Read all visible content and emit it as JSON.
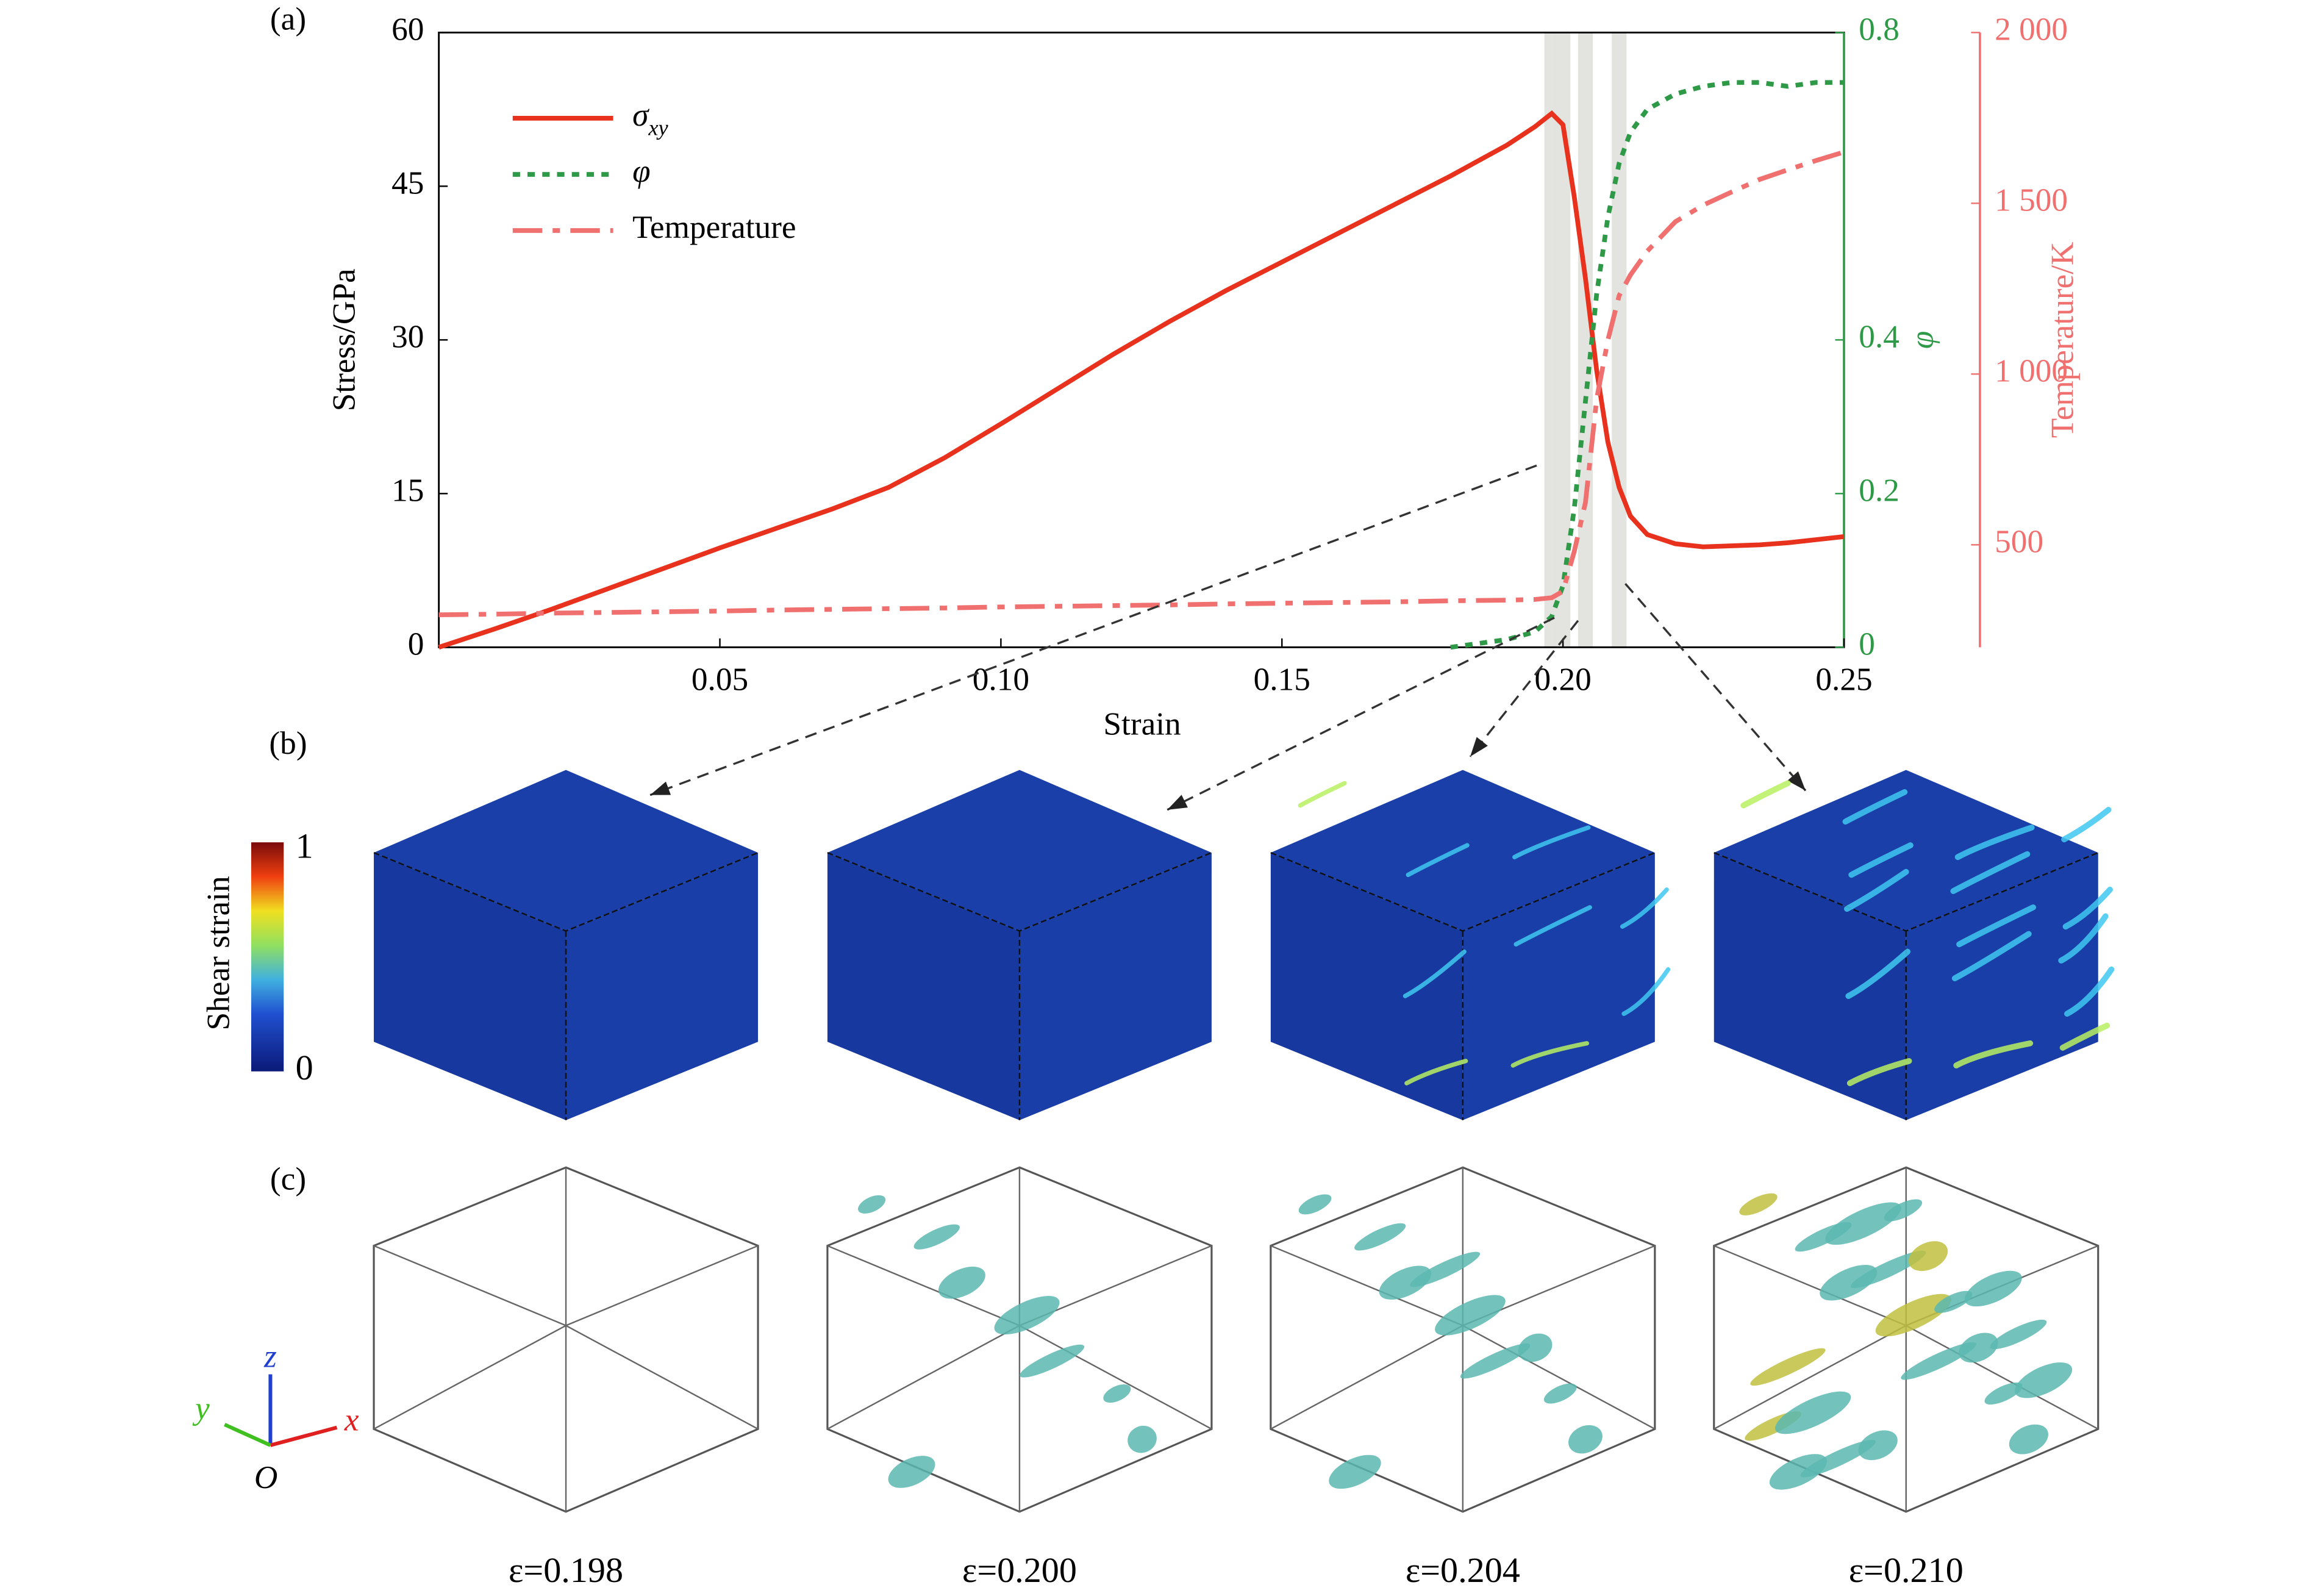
{
  "chart_data": {
    "type": "line",
    "panel_labels": [
      "(a)",
      "(b)",
      "(c)"
    ],
    "xlabel": "Strain",
    "ylabel": "Stress/GPa",
    "y2label": "φ",
    "y3label": "Temperature/K",
    "legend": "upper left",
    "x": [
      0,
      0.01,
      0.02,
      0.03,
      0.04,
      0.05,
      0.06,
      0.07,
      0.08,
      0.09,
      0.1,
      0.11,
      0.12,
      0.13,
      0.14,
      0.15,
      0.16,
      0.17,
      0.18,
      0.19,
      0.195,
      0.198,
      0.2,
      0.202,
      0.204,
      0.206,
      0.208,
      0.21,
      0.212,
      0.215,
      0.22,
      0.225,
      0.23,
      0.235,
      0.24,
      0.245,
      0.25
    ],
    "series": [
      {
        "name": "σ",
        "subscript": "xy",
        "color": "#e8321e",
        "style": "solid",
        "values": [
          0,
          1.8,
          3.7,
          5.7,
          7.7,
          9.7,
          11.6,
          13.5,
          15.6,
          18.5,
          21.8,
          25.2,
          28.6,
          31.8,
          34.8,
          37.6,
          40.4,
          43.2,
          46.0,
          49.0,
          50.8,
          52.1,
          51.0,
          44,
          36,
          27,
          20,
          15.6,
          12.8,
          11,
          10.1,
          9.8,
          9.9,
          10.0,
          10.2,
          10.5,
          10.8
        ]
      },
      {
        "name": "φ",
        "color": "#2e9a47",
        "style": "dotted",
        "axis": "y2",
        "values": [
          null,
          null,
          null,
          null,
          null,
          null,
          null,
          null,
          null,
          null,
          null,
          null,
          null,
          null,
          null,
          null,
          null,
          null,
          0,
          0.01,
          0.02,
          0.04,
          0.08,
          0.18,
          0.32,
          0.46,
          0.56,
          0.63,
          0.67,
          0.7,
          0.72,
          0.73,
          0.735,
          0.735,
          0.73,
          0.735,
          0.735
        ]
      },
      {
        "name": "Temperature",
        "color": "#f07070",
        "style": "dashdot",
        "axis": "y3",
        "values": [
          295,
          297,
          300,
          302,
          304,
          306,
          309,
          311,
          313,
          315,
          318,
          320,
          322,
          324,
          327,
          329,
          331,
          333,
          336,
          338,
          340,
          345,
          364,
          480,
          624,
          927,
          1100,
          1230,
          1290,
          1360,
          1446,
          1495,
          1533,
          1570,
          1598,
          1625,
          1650
        ]
      }
    ],
    "xlim": [
      0,
      0.25
    ],
    "xticks": [
      0.05,
      {
        "value": 0.1,
        "label": "0.10"
      },
      0.15,
      {
        "value": 0.2,
        "label": "0.20"
      },
      0.25
    ],
    "ylim": [
      0,
      60
    ],
    "yticks": [
      0,
      15,
      30,
      45,
      60
    ],
    "y2lim": [
      0,
      0.8
    ],
    "y2ticks": [
      0,
      0.2,
      0.4,
      0.8
    ],
    "y3lim": [
      200,
      2000
    ],
    "y3ticks": [
      500,
      {
        "value": 1000,
        "label": "1 000"
      },
      {
        "value": 1500,
        "label": "1 500"
      },
      {
        "value": 2000,
        "label": "2 000"
      }
    ],
    "bands": [
      0.198,
      0.2,
      0.204,
      0.21
    ],
    "colorbar": {
      "title": "Shear strain",
      "ticks": [
        0,
        1
      ]
    },
    "axes_labels": {
      "z": "z",
      "y": "y",
      "x": "x",
      "origin": "O"
    },
    "snapshot_labels": [
      "ε=0.198",
      "ε=0.200",
      "ε=0.204",
      "ε=0.210"
    ]
  }
}
